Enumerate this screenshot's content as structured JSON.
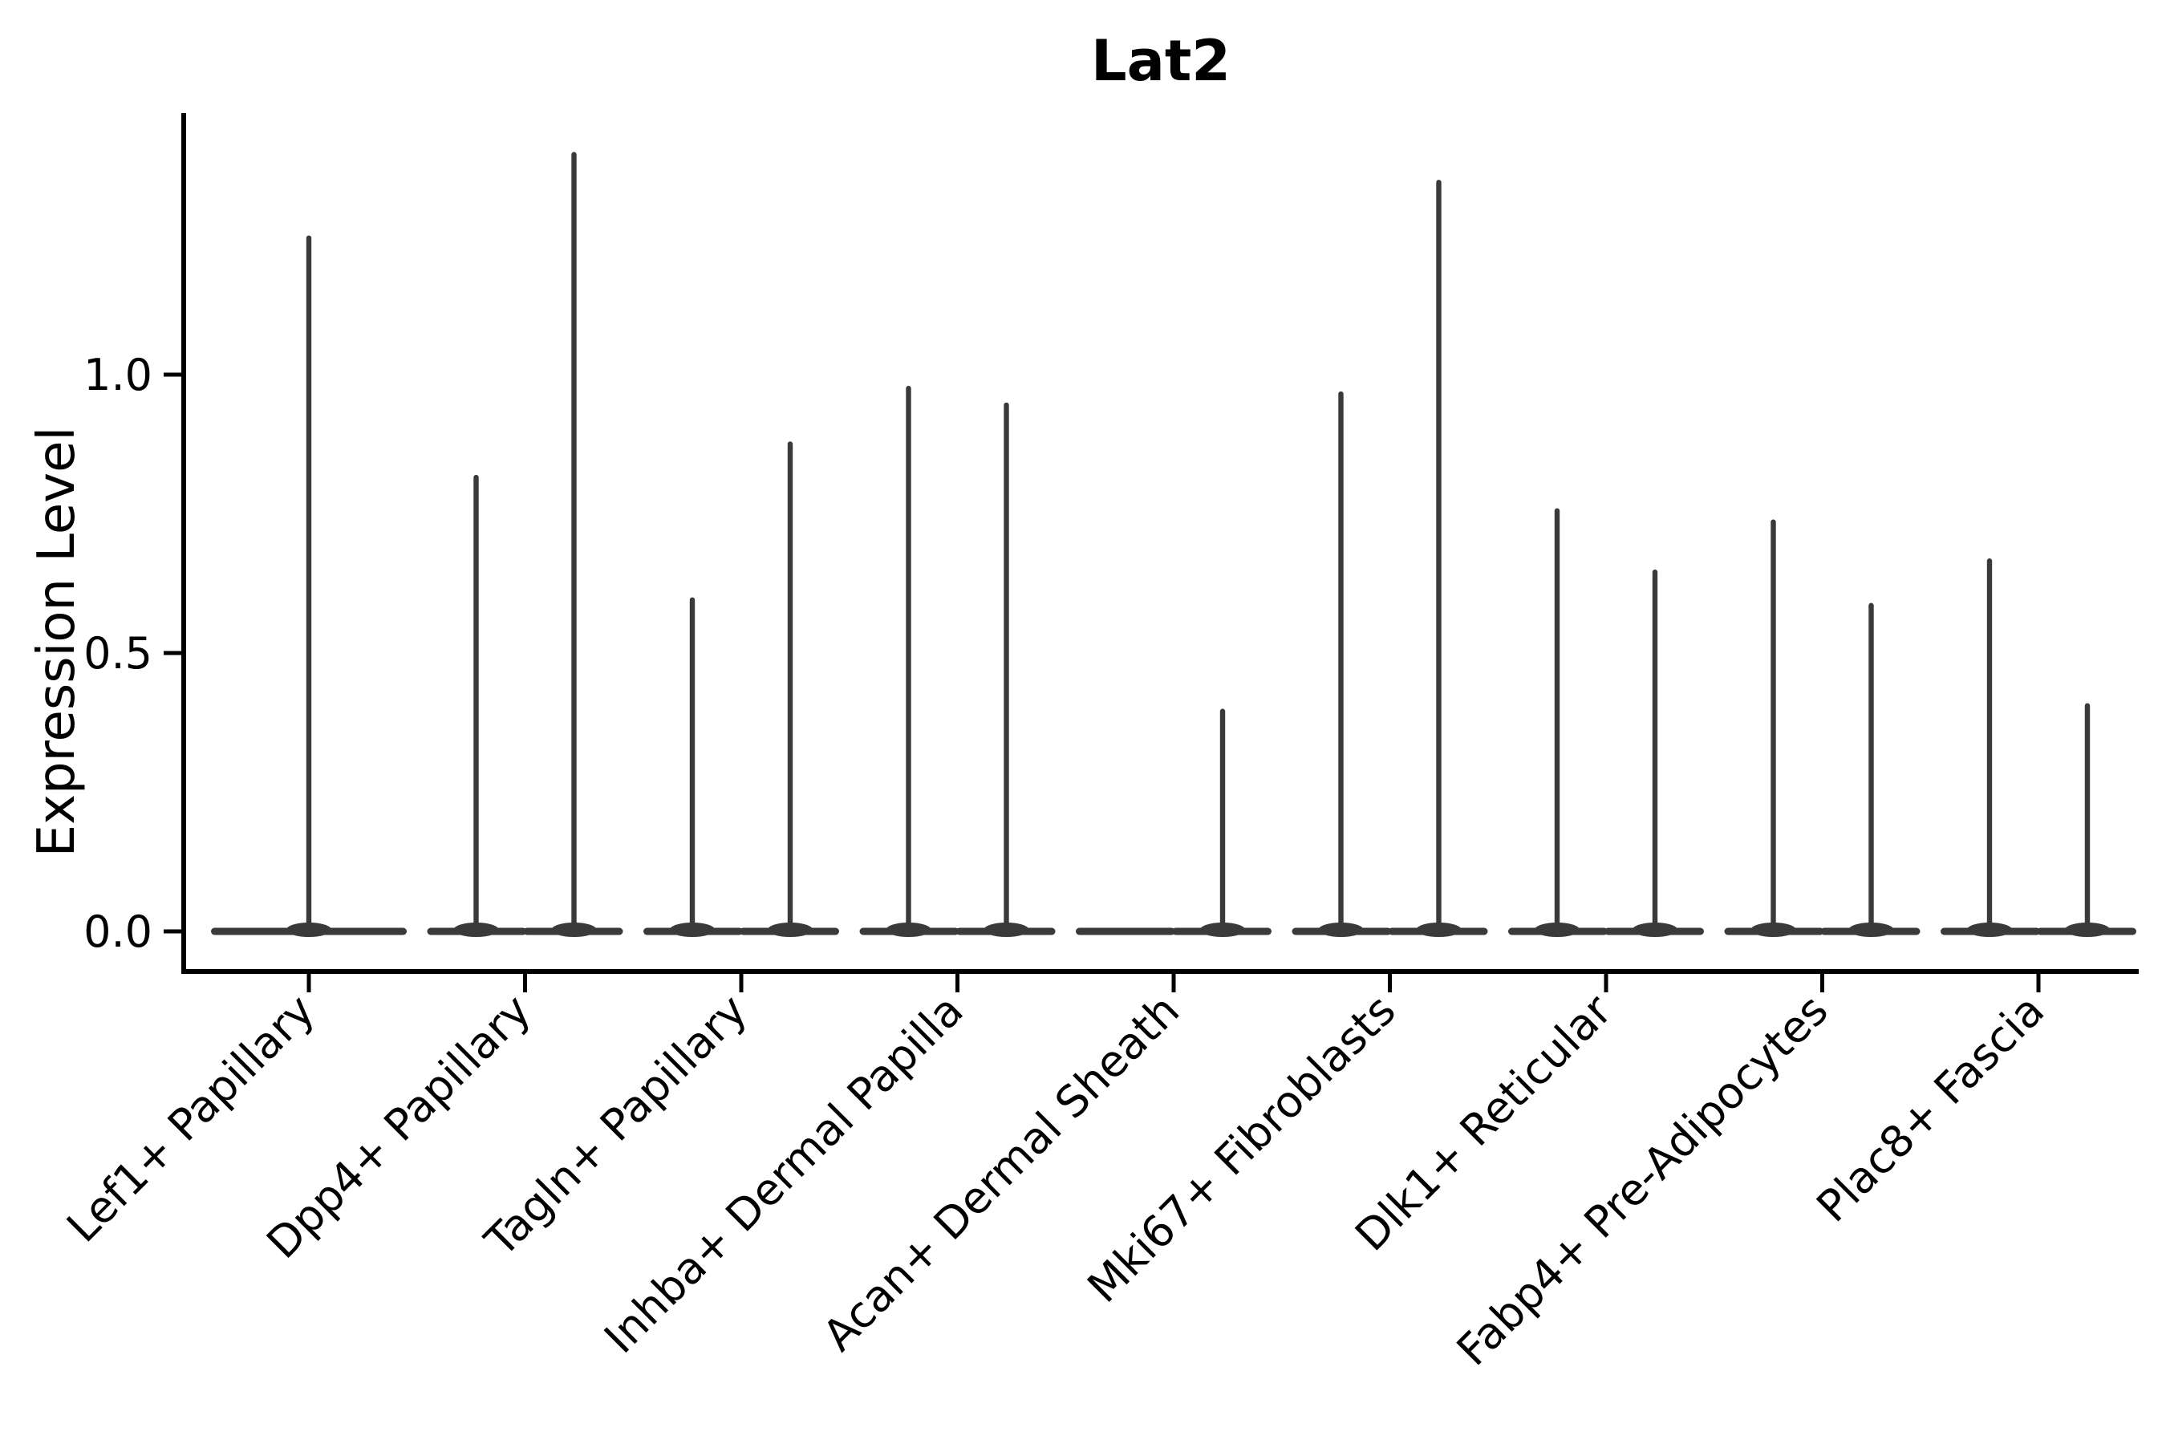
{
  "figure": {
    "background": "#ffffff"
  },
  "chart_data": {
    "type": "violin",
    "title": "Lat2",
    "xlabel": "",
    "ylabel": "Expression Level",
    "yticks": [
      {
        "label": "0.0",
        "value": 0.0
      },
      {
        "label": "0.5",
        "value": 0.5
      },
      {
        "label": "1.0",
        "value": 1.0
      }
    ],
    "ylim": [
      -0.07,
      1.47
    ],
    "grid": false,
    "legend": "none",
    "x_tick_rotation_deg": 45,
    "colors": {
      "violin": "#3a3a3a",
      "axis": "#000000",
      "text": "#000000",
      "background": "#ffffff"
    },
    "categories": [
      "Lef1+ Papillary",
      "Dpp4+ Papillary",
      "Tagln+ Papillary",
      "Inhba+ Dermal Papilla",
      "Acan+ Dermal Sheath",
      "Mki67+ Fibroblasts",
      "Dlk1+ Reticular",
      "Fabp4+ Pre-Adipocytes",
      "Plac8+ Fascia"
    ],
    "violins": [
      {
        "category": "Lef1+ Papillary",
        "max_values": [
          1.25
        ]
      },
      {
        "category": "Dpp4+ Papillary",
        "max_values": [
          0.82,
          1.4
        ]
      },
      {
        "category": "Tagln+ Papillary",
        "max_values": [
          0.6,
          0.88
        ]
      },
      {
        "category": "Inhba+ Dermal Papilla",
        "max_values": [
          0.98,
          0.95
        ]
      },
      {
        "category": "Acan+ Dermal Sheath",
        "max_values": [
          0.0,
          0.4
        ]
      },
      {
        "category": "Mki67+ Fibroblasts",
        "max_values": [
          0.97,
          1.35
        ]
      },
      {
        "category": "Dlk1+ Reticular",
        "max_values": [
          0.76,
          0.65
        ]
      },
      {
        "category": "Fabp4+ Pre-Adipocytes",
        "max_values": [
          0.74,
          0.59
        ]
      },
      {
        "category": "Plac8+ Fascia",
        "max_values": [
          0.67,
          0.41
        ]
      }
    ]
  }
}
